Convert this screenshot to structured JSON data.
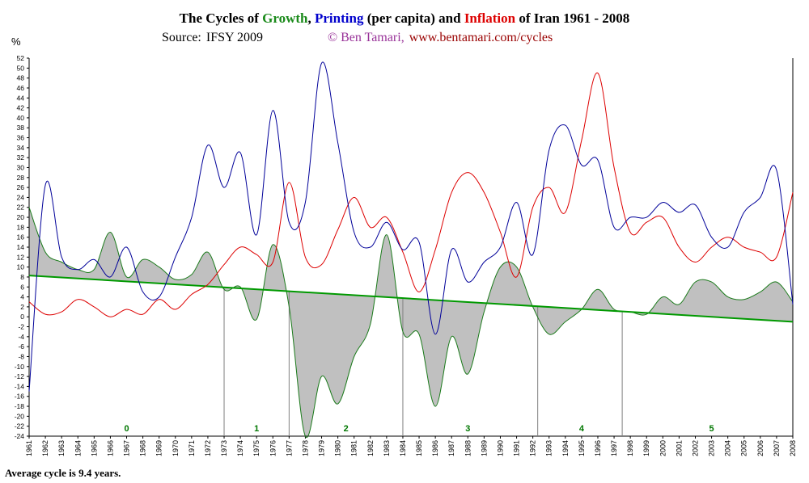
{
  "title": {
    "prefix": "The Cycles of ",
    "growth": "Growth",
    "comma": ", ",
    "printing": "Printing",
    "middle": " (per capita) and ",
    "inflation": "Inflation",
    "suffix": " of Iran 1961 - 2008"
  },
  "source": {
    "label": "Source:",
    "value": "IFSY 2009",
    "copyright": "© Ben Tamari,",
    "url": "www.bentamari.com/cycles"
  },
  "y_unit": "%",
  "footnote": "Average cycle is 9.4 years.",
  "colors": {
    "growth": "#1a7a1a",
    "printing": "#000099",
    "inflation": "#dd0000",
    "area": "#c0c0c0",
    "trend": "#009900",
    "cycle_label": "#007700"
  },
  "chart_data": {
    "type": "line",
    "title": "The Cycles of Growth, Printing (per capita) and Inflation of Iran 1961 - 2008",
    "xlabel": "",
    "ylabel": "%",
    "x": [
      1961,
      1962,
      1963,
      1964,
      1965,
      1966,
      1967,
      1968,
      1969,
      1970,
      1971,
      1972,
      1973,
      1974,
      1975,
      1976,
      1977,
      1978,
      1979,
      1980,
      1981,
      1982,
      1983,
      1984,
      1985,
      1986,
      1987,
      1988,
      1989,
      1990,
      1991,
      1992,
      1993,
      1994,
      1995,
      1996,
      1997,
      1998,
      1999,
      2000,
      2001,
      2002,
      2003,
      2004,
      2005,
      2006,
      2007,
      2008
    ],
    "xlim": [
      1961,
      2008
    ],
    "ylim": [
      -24,
      52
    ],
    "ytick_step": 2,
    "grid": false,
    "series": [
      {
        "name": "Growth",
        "color": "#1a7a1a",
        "fill": true,
        "values": [
          22,
          13,
          11,
          9.5,
          9.5,
          17,
          8,
          11.5,
          10,
          7.5,
          8.5,
          13,
          5.5,
          6,
          -0.5,
          14.5,
          2,
          -24,
          -12,
          -17.5,
          -8,
          -1.5,
          16.5,
          -3,
          -3.5,
          -18,
          -4,
          -11.5,
          1,
          10,
          10,
          2,
          -3.5,
          -1,
          1.5,
          5.5,
          1.5,
          1,
          0.5,
          4,
          2.5,
          7,
          7,
          4,
          3.5,
          5,
          7,
          3
        ]
      },
      {
        "name": "Printing",
        "color": "#000099",
        "values": [
          -15,
          26.5,
          12,
          9.5,
          11.5,
          8,
          14,
          5,
          4,
          12,
          20,
          34.5,
          26,
          33,
          16.5,
          41.5,
          19,
          23,
          51,
          35,
          17,
          14,
          19,
          13.5,
          15,
          -3.5,
          13.5,
          7,
          11,
          14,
          23,
          12.5,
          33.5,
          38.5,
          30.5,
          31.5,
          18,
          20,
          20,
          23,
          21,
          22.5,
          16,
          14,
          21,
          24,
          29.5,
          2.5
        ]
      },
      {
        "name": "Inflation",
        "color": "#dd0000",
        "values": [
          3,
          0.5,
          1,
          3.5,
          2,
          0,
          1.5,
          0.5,
          3.5,
          1.5,
          4.5,
          6.5,
          10.5,
          14,
          12.5,
          11,
          27,
          12,
          10.5,
          17.5,
          24,
          18,
          20,
          13,
          5,
          13.5,
          25,
          29,
          25,
          17,
          8,
          22,
          26,
          21,
          35.5,
          49,
          30,
          17,
          19,
          20,
          14,
          11,
          14,
          16,
          14,
          13,
          12,
          25
        ]
      }
    ],
    "trendline": {
      "name": "Trend",
      "from": [
        1961,
        8.3
      ],
      "to": [
        2008,
        -1
      ]
    },
    "cycle_troughs": [
      1973,
      1977,
      1984,
      1992.3,
      1997.5
    ],
    "cycle_labels": [
      {
        "text": "0",
        "x": 1967
      },
      {
        "text": "1",
        "x": 1975
      },
      {
        "text": "2",
        "x": 1980.5
      },
      {
        "text": "3",
        "x": 1988
      },
      {
        "text": "4",
        "x": 1995
      },
      {
        "text": "5",
        "x": 2003
      }
    ]
  }
}
